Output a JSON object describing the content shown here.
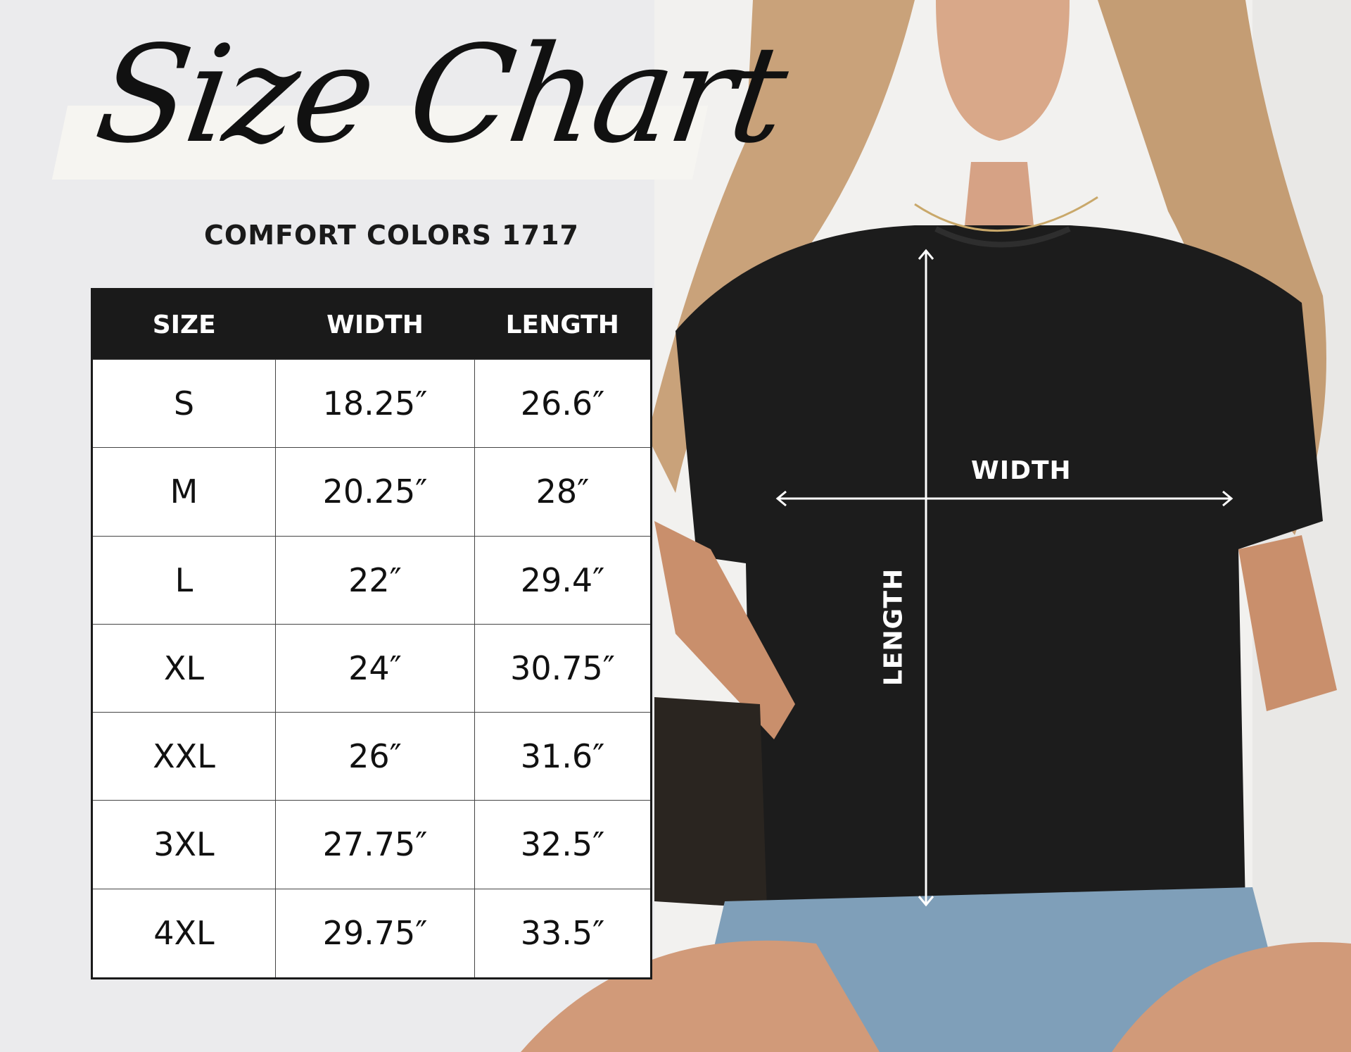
{
  "header": {
    "title": "Size Chart",
    "subtitle": "COMFORT COLORS 1717"
  },
  "table": {
    "columns": [
      "SIZE",
      "WIDTH",
      "LENGTH"
    ],
    "rows": [
      [
        "S",
        "18.25″",
        "26.6″"
      ],
      [
        "M",
        "20.25″",
        "28″"
      ],
      [
        "L",
        "22″",
        "29.4″"
      ],
      [
        "XL",
        "24″",
        "30.75″"
      ],
      [
        "XXL",
        "26″",
        "31.6″"
      ],
      [
        "3XL",
        "27.75″",
        "32.5″"
      ],
      [
        "4XL",
        "29.75″",
        "33.5″"
      ]
    ]
  },
  "diagram": {
    "width_label": "WIDTH",
    "length_label": "LENGTH"
  },
  "colors": {
    "header_bg": "#1a1a1a",
    "shirt": "#1c1c1c",
    "background": "#ebebed"
  }
}
